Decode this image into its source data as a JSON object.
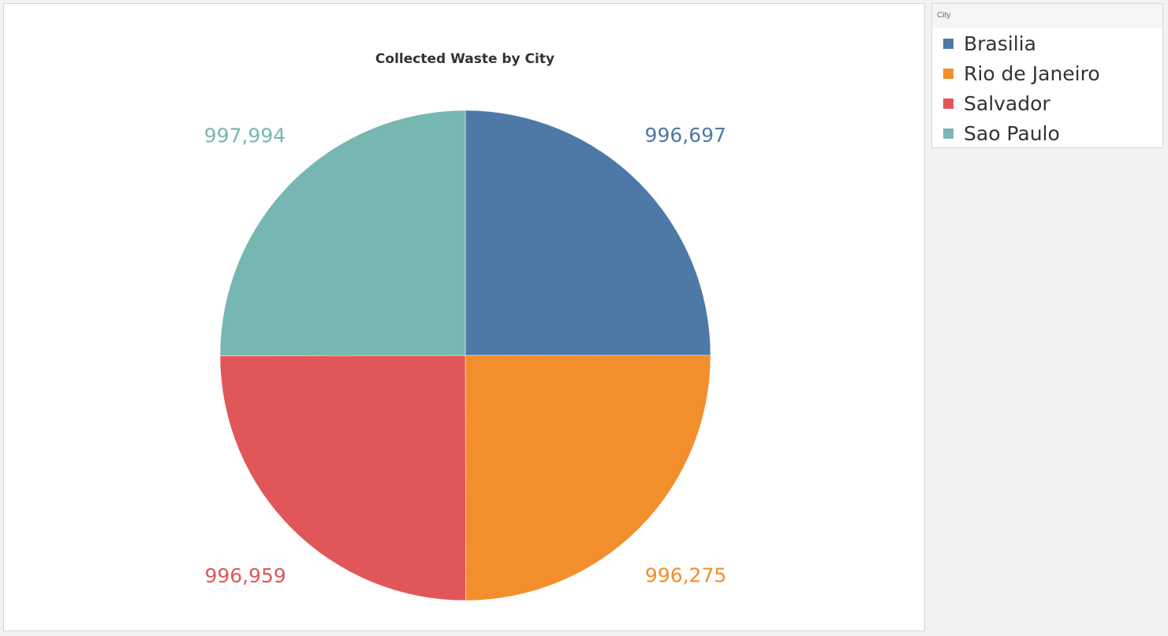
{
  "chart_data": {
    "type": "pie",
    "title": "Collected Waste by City",
    "categories": [
      "Brasilia",
      "Rio de Janeiro",
      "Salvador",
      "Sao Paulo"
    ],
    "values": [
      996697,
      996275,
      996959,
      997994
    ],
    "value_labels": [
      "996,697",
      "996,275",
      "996,959",
      "997,994"
    ],
    "colors": [
      "#4e79a7",
      "#f28e2b",
      "#e15759",
      "#76b7b2"
    ],
    "start_angle_deg": 0,
    "direction": "clockwise",
    "legend": {
      "title": "City",
      "placement": "right"
    }
  }
}
